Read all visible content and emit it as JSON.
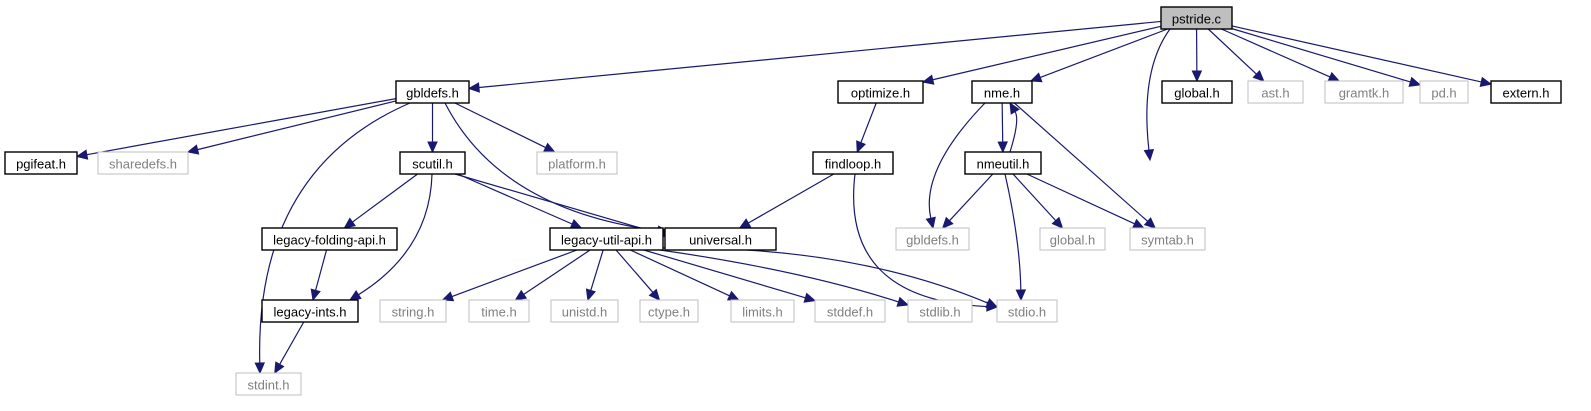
{
  "colors": {
    "edge": "#191970",
    "root_fill": "#bfbfbf",
    "external_border": "#bfbfbf",
    "external_text": "#808080"
  },
  "nodes": {
    "pstride_c": {
      "label": "pstride.c",
      "kind": "root"
    },
    "gbldefs_h": {
      "label": "gbldefs.h",
      "kind": "documented"
    },
    "optimize_h": {
      "label": "optimize.h",
      "kind": "documented"
    },
    "nme_h": {
      "label": "nme.h",
      "kind": "documented"
    },
    "global_h": {
      "label": "global.h",
      "kind": "documented"
    },
    "ast_h": {
      "label": "ast.h",
      "kind": "external"
    },
    "gramtk_h": {
      "label": "gramtk.h",
      "kind": "external"
    },
    "pd_h": {
      "label": "pd.h",
      "kind": "external"
    },
    "extern_h": {
      "label": "extern.h",
      "kind": "documented"
    },
    "pgifeat_h": {
      "label": "pgifeat.h",
      "kind": "documented"
    },
    "sharedefs_h": {
      "label": "sharedefs.h",
      "kind": "external"
    },
    "scutil_h": {
      "label": "scutil.h",
      "kind": "documented"
    },
    "platform_h": {
      "label": "platform.h",
      "kind": "external"
    },
    "findloop_h": {
      "label": "findloop.h",
      "kind": "documented"
    },
    "nmeutil_h": {
      "label": "nmeutil.h",
      "kind": "documented"
    },
    "legacy_folding_api_h": {
      "label": "legacy-folding-api.h",
      "kind": "documented"
    },
    "legacy_util_api_h": {
      "label": "legacy-util-api.h",
      "kind": "documented"
    },
    "universal_h": {
      "label": "universal.h",
      "kind": "documented"
    },
    "gbldefs_h_ext": {
      "label": "gbldefs.h",
      "kind": "external"
    },
    "global_h_ext": {
      "label": "global.h",
      "kind": "external"
    },
    "symtab_h": {
      "label": "symtab.h",
      "kind": "external"
    },
    "legacy_ints_h": {
      "label": "legacy-ints.h",
      "kind": "documented"
    },
    "string_h": {
      "label": "string.h",
      "kind": "external"
    },
    "time_h": {
      "label": "time.h",
      "kind": "external"
    },
    "unistd_h": {
      "label": "unistd.h",
      "kind": "external"
    },
    "ctype_h": {
      "label": "ctype.h",
      "kind": "external"
    },
    "limits_h": {
      "label": "limits.h",
      "kind": "external"
    },
    "stddef_h": {
      "label": "stddef.h",
      "kind": "external"
    },
    "stdlib_h": {
      "label": "stdlib.h",
      "kind": "external"
    },
    "stdio_h": {
      "label": "stdio.h",
      "kind": "external"
    },
    "stdint_h": {
      "label": "stdint.h",
      "kind": "external"
    }
  },
  "edges": [
    [
      "pstride_c",
      "gbldefs_h"
    ],
    [
      "pstride_c",
      "optimize_h"
    ],
    [
      "pstride_c",
      "nme_h"
    ],
    [
      "pstride_c",
      "symtab_h"
    ],
    [
      "pstride_c",
      "global_h"
    ],
    [
      "pstride_c",
      "ast_h"
    ],
    [
      "pstride_c",
      "gramtk_h"
    ],
    [
      "pstride_c",
      "pd_h"
    ],
    [
      "pstride_c",
      "extern_h"
    ],
    [
      "gbldefs_h",
      "pgifeat_h"
    ],
    [
      "gbldefs_h",
      "sharedefs_h"
    ],
    [
      "gbldefs_h",
      "scutil_h"
    ],
    [
      "gbldefs_h",
      "platform_h"
    ],
    [
      "gbldefs_h",
      "universal_h"
    ],
    [
      "gbldefs_h",
      "stdint_h"
    ],
    [
      "scutil_h",
      "legacy_folding_api_h"
    ],
    [
      "scutil_h",
      "legacy_util_api_h"
    ],
    [
      "scutil_h",
      "universal_h"
    ],
    [
      "scutil_h",
      "legacy_ints_h"
    ],
    [
      "legacy_folding_api_h",
      "legacy_ints_h"
    ],
    [
      "legacy_ints_h",
      "stdint_h"
    ],
    [
      "legacy_util_api_h",
      "string_h"
    ],
    [
      "legacy_util_api_h",
      "time_h"
    ],
    [
      "legacy_util_api_h",
      "unistd_h"
    ],
    [
      "legacy_util_api_h",
      "ctype_h"
    ],
    [
      "legacy_util_api_h",
      "limits_h"
    ],
    [
      "legacy_util_api_h",
      "stddef_h"
    ],
    [
      "legacy_util_api_h",
      "stdlib_h"
    ],
    [
      "legacy_util_api_h",
      "stdio_h"
    ],
    [
      "optimize_h",
      "findloop_h"
    ],
    [
      "findloop_h",
      "universal_h"
    ],
    [
      "findloop_h",
      "stdio_h"
    ],
    [
      "nme_h",
      "nmeutil_h"
    ],
    [
      "nme_h",
      "gbldefs_h_ext"
    ],
    [
      "nme_h",
      "symtab_h"
    ],
    [
      "nmeutil_h",
      "nme_h"
    ],
    [
      "nmeutil_h",
      "gbldefs_h_ext"
    ],
    [
      "nmeutil_h",
      "global_h_ext"
    ],
    [
      "nmeutil_h",
      "symtab_h"
    ],
    [
      "nmeutil_h",
      "stdio_h"
    ]
  ]
}
